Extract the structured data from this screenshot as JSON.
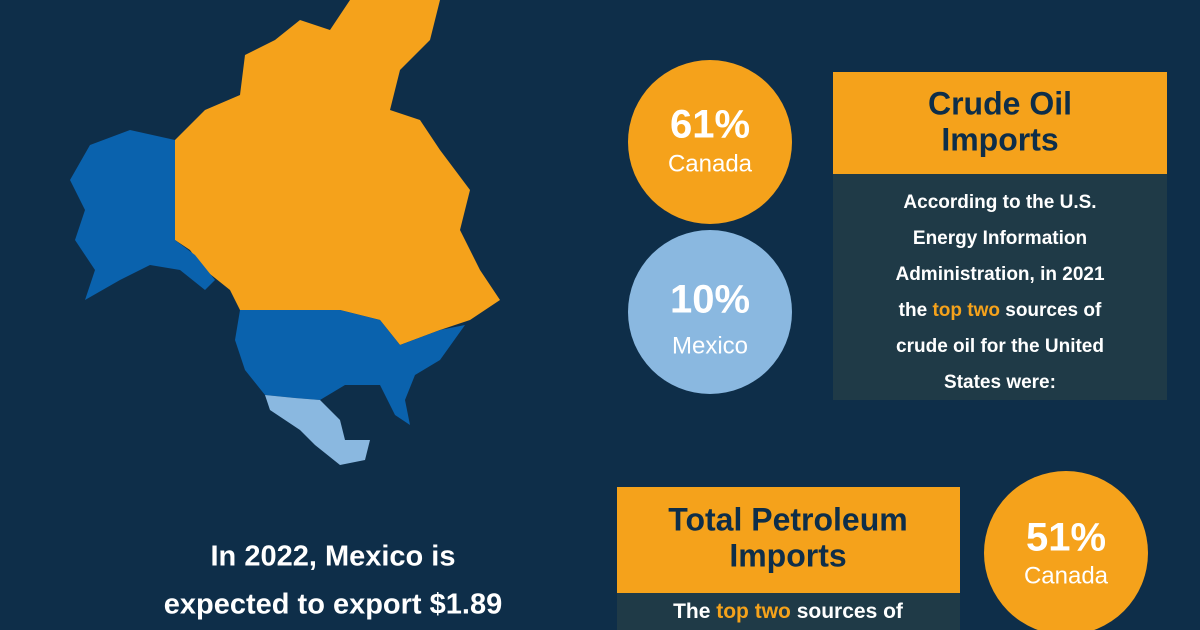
{
  "crude_oil": {
    "title_lines": [
      "Crude Oil",
      "Imports"
    ],
    "body_lines": [
      "According to the U.S.",
      "Energy Information",
      "Administration, in 2021",
      {
        "before": "the ",
        "highlight": "top two",
        "after": " sources of"
      },
      "crude oil for the United",
      "States were:"
    ],
    "sources": [
      {
        "percent": "61%",
        "country": "Canada"
      },
      {
        "percent": "10%",
        "country": "Mexico"
      }
    ]
  },
  "petroleum": {
    "title_lines": [
      "Total Petroleum",
      "Imports"
    ],
    "body_line": {
      "before": "The ",
      "highlight": "top two",
      "after": " sources of"
    },
    "sources": [
      {
        "percent": "51%",
        "country": "Canada"
      }
    ]
  },
  "mexico_note": [
    "In 2022, Mexico is",
    "expected to export $1.89"
  ]
}
